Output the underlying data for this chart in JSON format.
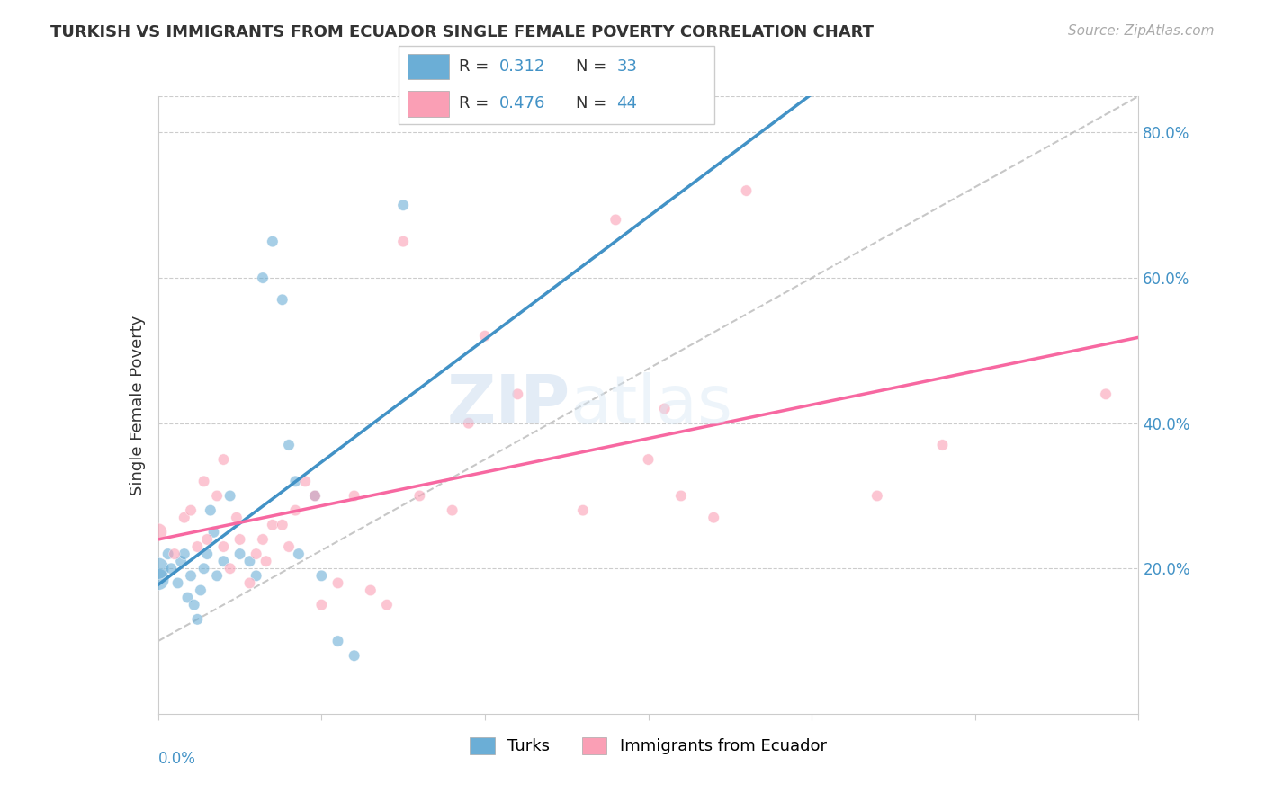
{
  "title": "TURKISH VS IMMIGRANTS FROM ECUADOR SINGLE FEMALE POVERTY CORRELATION CHART",
  "source": "Source: ZipAtlas.com",
  "ylabel": "Single Female Poverty",
  "xlim": [
    0.0,
    0.3
  ],
  "ylim": [
    0.0,
    0.85
  ],
  "yticks": [
    0.2,
    0.4,
    0.6,
    0.8
  ],
  "ytick_labels": [
    "20.0%",
    "40.0%",
    "60.0%",
    "80.0%"
  ],
  "legend_r1": "0.312",
  "legend_n1": "33",
  "legend_r2": "0.476",
  "legend_n2": "44",
  "color_blue": "#6baed6",
  "color_pink": "#fa9fb5",
  "color_blue_line": "#4292c6",
  "color_pink_line": "#f768a1",
  "color_dashed": "#b0b0b0",
  "watermark_zip": "ZIP",
  "watermark_atlas": "atlas",
  "turks_x": [
    0.0,
    0.0,
    0.003,
    0.004,
    0.006,
    0.007,
    0.008,
    0.009,
    0.01,
    0.011,
    0.012,
    0.013,
    0.014,
    0.015,
    0.016,
    0.017,
    0.018,
    0.02,
    0.022,
    0.025,
    0.028,
    0.03,
    0.032,
    0.035,
    0.038,
    0.04,
    0.042,
    0.043,
    0.048,
    0.05,
    0.055,
    0.06,
    0.075
  ],
  "turks_y": [
    0.185,
    0.2,
    0.22,
    0.2,
    0.18,
    0.21,
    0.22,
    0.16,
    0.19,
    0.15,
    0.13,
    0.17,
    0.2,
    0.22,
    0.28,
    0.25,
    0.19,
    0.21,
    0.3,
    0.22,
    0.21,
    0.19,
    0.6,
    0.65,
    0.57,
    0.37,
    0.32,
    0.22,
    0.3,
    0.19,
    0.1,
    0.08,
    0.7
  ],
  "ecuador_x": [
    0.0,
    0.005,
    0.008,
    0.01,
    0.012,
    0.014,
    0.015,
    0.018,
    0.02,
    0.02,
    0.022,
    0.024,
    0.025,
    0.028,
    0.03,
    0.032,
    0.033,
    0.035,
    0.038,
    0.04,
    0.042,
    0.045,
    0.048,
    0.05,
    0.055,
    0.06,
    0.065,
    0.07,
    0.075,
    0.08,
    0.09,
    0.095,
    0.1,
    0.11,
    0.13,
    0.14,
    0.15,
    0.155,
    0.16,
    0.17,
    0.18,
    0.22,
    0.24,
    0.29
  ],
  "ecuador_y": [
    0.25,
    0.22,
    0.27,
    0.28,
    0.23,
    0.32,
    0.24,
    0.3,
    0.23,
    0.35,
    0.2,
    0.27,
    0.24,
    0.18,
    0.22,
    0.24,
    0.21,
    0.26,
    0.26,
    0.23,
    0.28,
    0.32,
    0.3,
    0.15,
    0.18,
    0.3,
    0.17,
    0.15,
    0.65,
    0.3,
    0.28,
    0.4,
    0.52,
    0.44,
    0.28,
    0.68,
    0.35,
    0.42,
    0.3,
    0.27,
    0.72,
    0.3,
    0.37,
    0.44
  ]
}
